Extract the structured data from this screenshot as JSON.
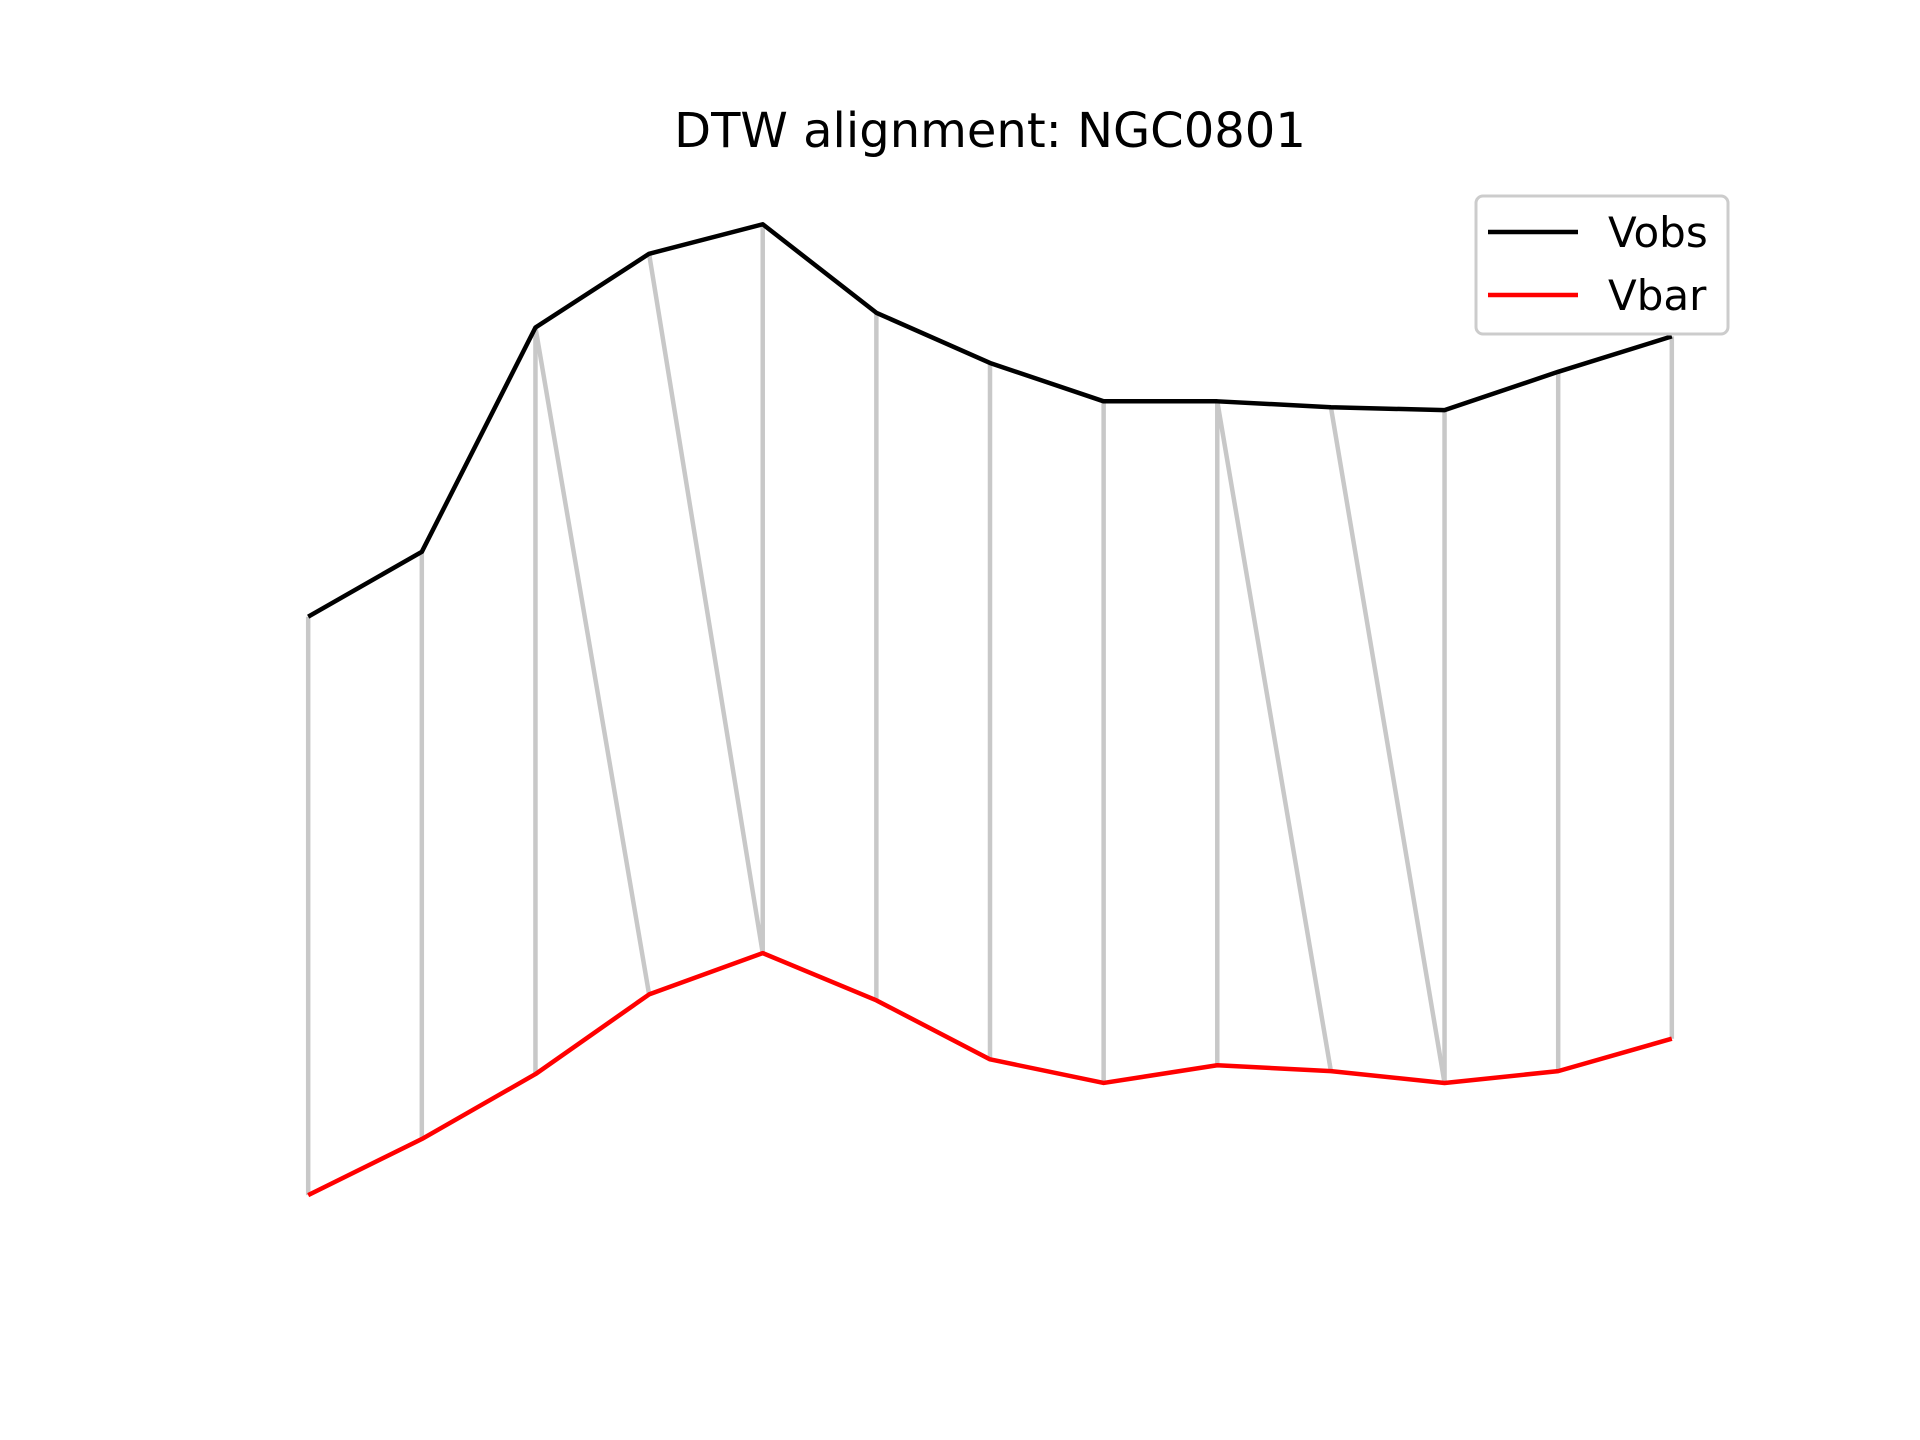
{
  "chart_data": {
    "type": "line",
    "title": "DTW alignment: NGC0801",
    "xlabel": "",
    "ylabel": "",
    "axes_visible": false,
    "grid": false,
    "legend_position": "top-right",
    "x": [
      0,
      1,
      2,
      3,
      4,
      5,
      6,
      7,
      8,
      9,
      10,
      11,
      12
    ],
    "series": [
      {
        "name": "Vobs",
        "color": "#000000",
        "values": [
          0.0,
          0.22,
          0.98,
          1.23,
          1.33,
          1.03,
          0.86,
          0.73,
          0.73,
          0.71,
          0.7,
          0.83,
          0.95
        ]
      },
      {
        "name": "Vbar",
        "color": "#ff0000",
        "values": [
          -1.96,
          -1.77,
          -1.55,
          -1.28,
          -1.14,
          -1.3,
          -1.5,
          -1.58,
          -1.52,
          -1.54,
          -1.58,
          -1.54,
          -1.43
        ]
      }
    ],
    "alignment": {
      "color": "#c8c8c8",
      "pairs": [
        [
          0,
          0
        ],
        [
          1,
          1
        ],
        [
          2,
          2
        ],
        [
          2,
          3
        ],
        [
          3,
          4
        ],
        [
          4,
          4
        ],
        [
          5,
          5
        ],
        [
          6,
          6
        ],
        [
          7,
          7
        ],
        [
          8,
          8
        ],
        [
          8,
          9
        ],
        [
          9,
          10
        ],
        [
          10,
          10
        ],
        [
          11,
          11
        ],
        [
          12,
          12
        ]
      ]
    },
    "ylim": [
      -2.18,
      1.48
    ]
  }
}
